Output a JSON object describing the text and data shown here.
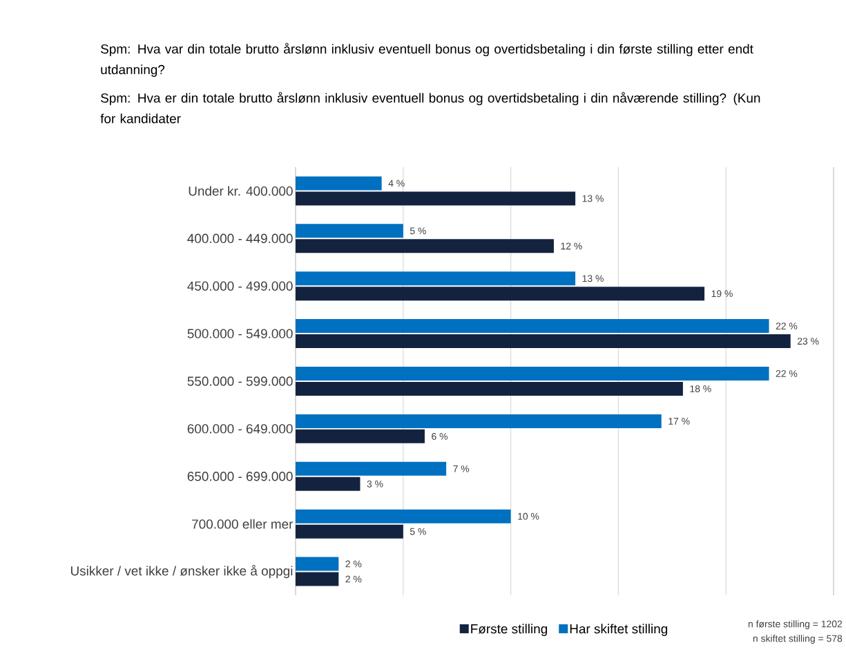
{
  "chart_data": {
    "type": "bar",
    "orientation": "horizontal",
    "title": "Spm: Hva var din totale brutto årslønn inklusiv eventuell bonus og overtidsbetaling i din første stilling etter endt utdanning?",
    "subtitle": "Spm: Hva er din totale brutto årslønn inklusiv eventuell bonus og overtidsbetaling i din nåværende stilling? (Kun for kandidater",
    "categories": [
      "Under kr. 400.000",
      "400.000 - 449.000",
      "450.000 - 499.000",
      "500.000 - 549.000",
      "550.000 - 599.000",
      "600.000 - 649.000",
      "650.000 - 699.000",
      "700.000 eller mer",
      "Usikker / vet ikke / ønsker ikke å oppgi"
    ],
    "series": [
      {
        "name": "Første stilling",
        "color": "#13233f",
        "values": [
          13,
          12,
          19,
          23,
          18,
          6,
          3,
          5,
          2
        ],
        "value_labels": [
          "13 %",
          "12 %",
          "19 %",
          "23 %",
          "18 %",
          "6 %",
          "3 %",
          "5 %",
          "2 %"
        ]
      },
      {
        "name": "Har skiftet stilling",
        "color": "#0070c0",
        "values": [
          4,
          5,
          13,
          22,
          22,
          17,
          7,
          10,
          2
        ],
        "value_labels": [
          "4 %",
          "5 %",
          "13 %",
          "22 %",
          "22 %",
          "17 %",
          "7 %",
          "10 %",
          "2 %"
        ]
      }
    ],
    "xlim": [
      0,
      25
    ],
    "xticks": [
      {
        "value": 0,
        "label": null
      },
      {
        "value": 5,
        "label": null
      },
      {
        "value": 10,
        "label": null
      },
      {
        "value": 15,
        "label": null
      },
      {
        "value": 20,
        "label": null
      },
      {
        "value": 25,
        "label": null
      }
    ],
    "tick_labels": "y",
    "grid": "x",
    "legend": "bottom",
    "annotations": [
      "n første stilling = 1202",
      "n skiftet stilling = 578"
    ]
  }
}
